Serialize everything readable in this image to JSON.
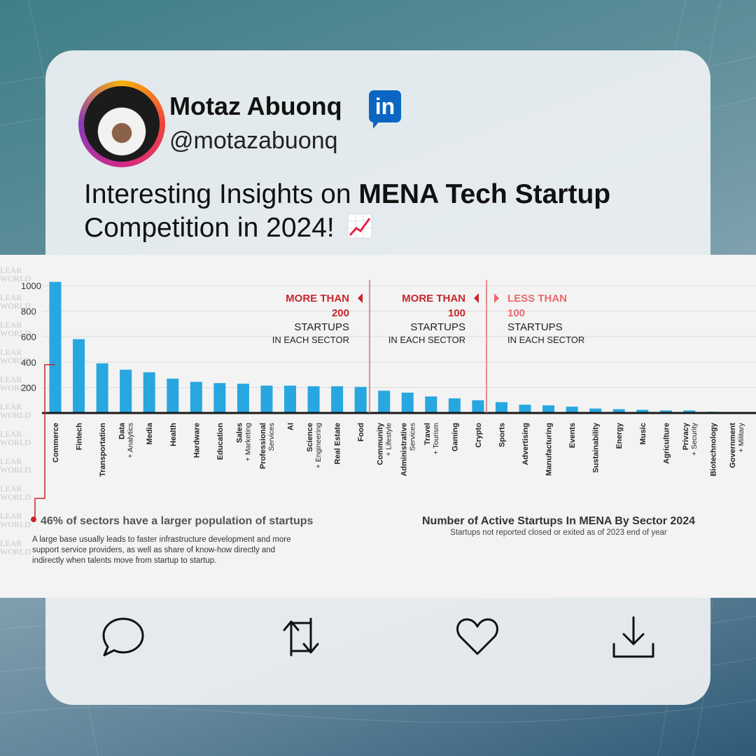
{
  "post": {
    "author_name": "Motaz Abuonq",
    "handle": "@motazabuonq",
    "headline_prefix": "Interesting Insights on ",
    "headline_bold": "MENA Tech Startup",
    "headline_suffix": "Competition in 2024!",
    "linkedin_label": "in"
  },
  "chart_data": {
    "type": "bar",
    "title": "Number of Active Startups In MENA By Sector 2024",
    "subtitle": "Startups not reported closed or exited as of 2023 end of year",
    "categories": [
      [
        "Commerce"
      ],
      [
        "Fintech"
      ],
      [
        "Transportation"
      ],
      [
        "Data",
        "+ Analytics"
      ],
      [
        "Media"
      ],
      [
        "Health"
      ],
      [
        "Hardware"
      ],
      [
        "Education"
      ],
      [
        "Sales",
        "+ Marketing"
      ],
      [
        "Professional",
        "Services"
      ],
      [
        "AI"
      ],
      [
        "Science",
        "+ Engineering"
      ],
      [
        "Real Estate"
      ],
      [
        "Food"
      ],
      [
        "Community",
        "+ Lifestyle"
      ],
      [
        "Administrative",
        "Services"
      ],
      [
        "Travel",
        "+ Tourism"
      ],
      [
        "Gaming"
      ],
      [
        "Crypto"
      ],
      [
        "Sports"
      ],
      [
        "Advertising"
      ],
      [
        "Manufacturing"
      ],
      [
        "Events"
      ],
      [
        "Sustainability"
      ],
      [
        "Energy"
      ],
      [
        "Music"
      ],
      [
        "Agriculture"
      ],
      [
        "Privacy",
        "+ Security"
      ],
      [
        "Biotechnology"
      ],
      [
        "Government",
        "+ Military"
      ]
    ],
    "values": [
      1030,
      580,
      390,
      340,
      320,
      270,
      245,
      235,
      230,
      215,
      215,
      210,
      210,
      205,
      175,
      160,
      130,
      115,
      100,
      85,
      65,
      60,
      50,
      35,
      30,
      25,
      20,
      20,
      10,
      5
    ],
    "ylim": [
      0,
      1100
    ],
    "yticks": [
      200,
      400,
      600,
      800,
      1000
    ],
    "bar_color": "#28a6df",
    "accent_color": "#c8262d",
    "light_accent_color": "#e96a6e",
    "groups": [
      {
        "qualifier": "MORE THAN",
        "number": "200",
        "line1": "STARTUPS",
        "line2": "IN EACH SECTOR"
      },
      {
        "qualifier": "MORE THAN",
        "number": "100",
        "line1": "STARTUPS",
        "line2": "IN EACH SECTOR"
      },
      {
        "qualifier": "LESS THAN",
        "number": "100",
        "line1": "STARTUPS",
        "line2": "IN EACH SECTOR"
      }
    ],
    "insight_title": "46% of sectors have a larger population of startups",
    "insight_lines": [
      "A large base usually leads to faster infrastructure development and more",
      "support service providers, as well as share of know-how directly and",
      "indirectly when talents move from startup to startup."
    ],
    "watermark": "LEAR WORLD"
  },
  "actions": {
    "comment": "comment-icon",
    "repost": "repost-icon",
    "like": "heart-icon",
    "download": "download-icon"
  }
}
